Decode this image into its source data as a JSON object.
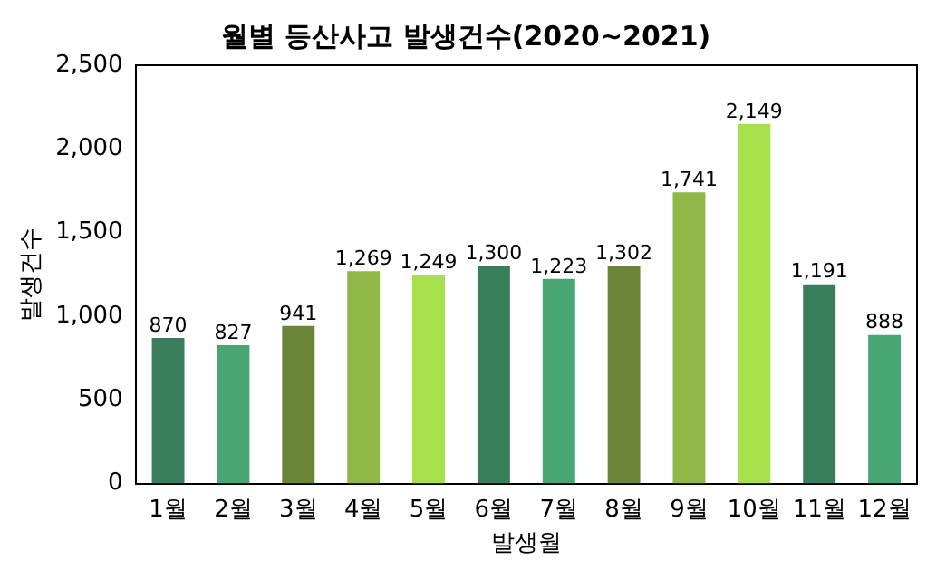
{
  "chart_data": {
    "type": "bar",
    "title": "월별 등산사고 발생건수(2020~2021)",
    "xlabel": "발생월",
    "ylabel": "발생건수",
    "categories": [
      "1월",
      "2월",
      "3월",
      "4월",
      "5월",
      "6월",
      "7월",
      "8월",
      "9월",
      "10월",
      "11월",
      "12월"
    ],
    "values": [
      870,
      827,
      941,
      1269,
      1249,
      1300,
      1223,
      1302,
      1741,
      2149,
      1191,
      888
    ],
    "value_labels": [
      "870",
      "827",
      "941",
      "1,269",
      "1,249",
      "1,300",
      "1,223",
      "1,302",
      "1,741",
      "2,149",
      "1,191",
      "888"
    ],
    "colors": [
      "#3a7d5a",
      "#48a574",
      "#6a8535",
      "#8fb847",
      "#a6e04a",
      "#3a7d5a",
      "#48a574",
      "#6a8535",
      "#8fb847",
      "#a6e04a",
      "#3a7d5a",
      "#48a574"
    ],
    "ylim": [
      0,
      2500
    ],
    "yticks": [
      0,
      500,
      {
        "value": 1000,
        "label": "1,000"
      },
      {
        "value": 1500,
        "label": "1,500"
      },
      {
        "value": 2000,
        "label": "2,000"
      },
      {
        "value": 2500,
        "label": "2,500"
      }
    ],
    "grid": false,
    "legend": false
  }
}
